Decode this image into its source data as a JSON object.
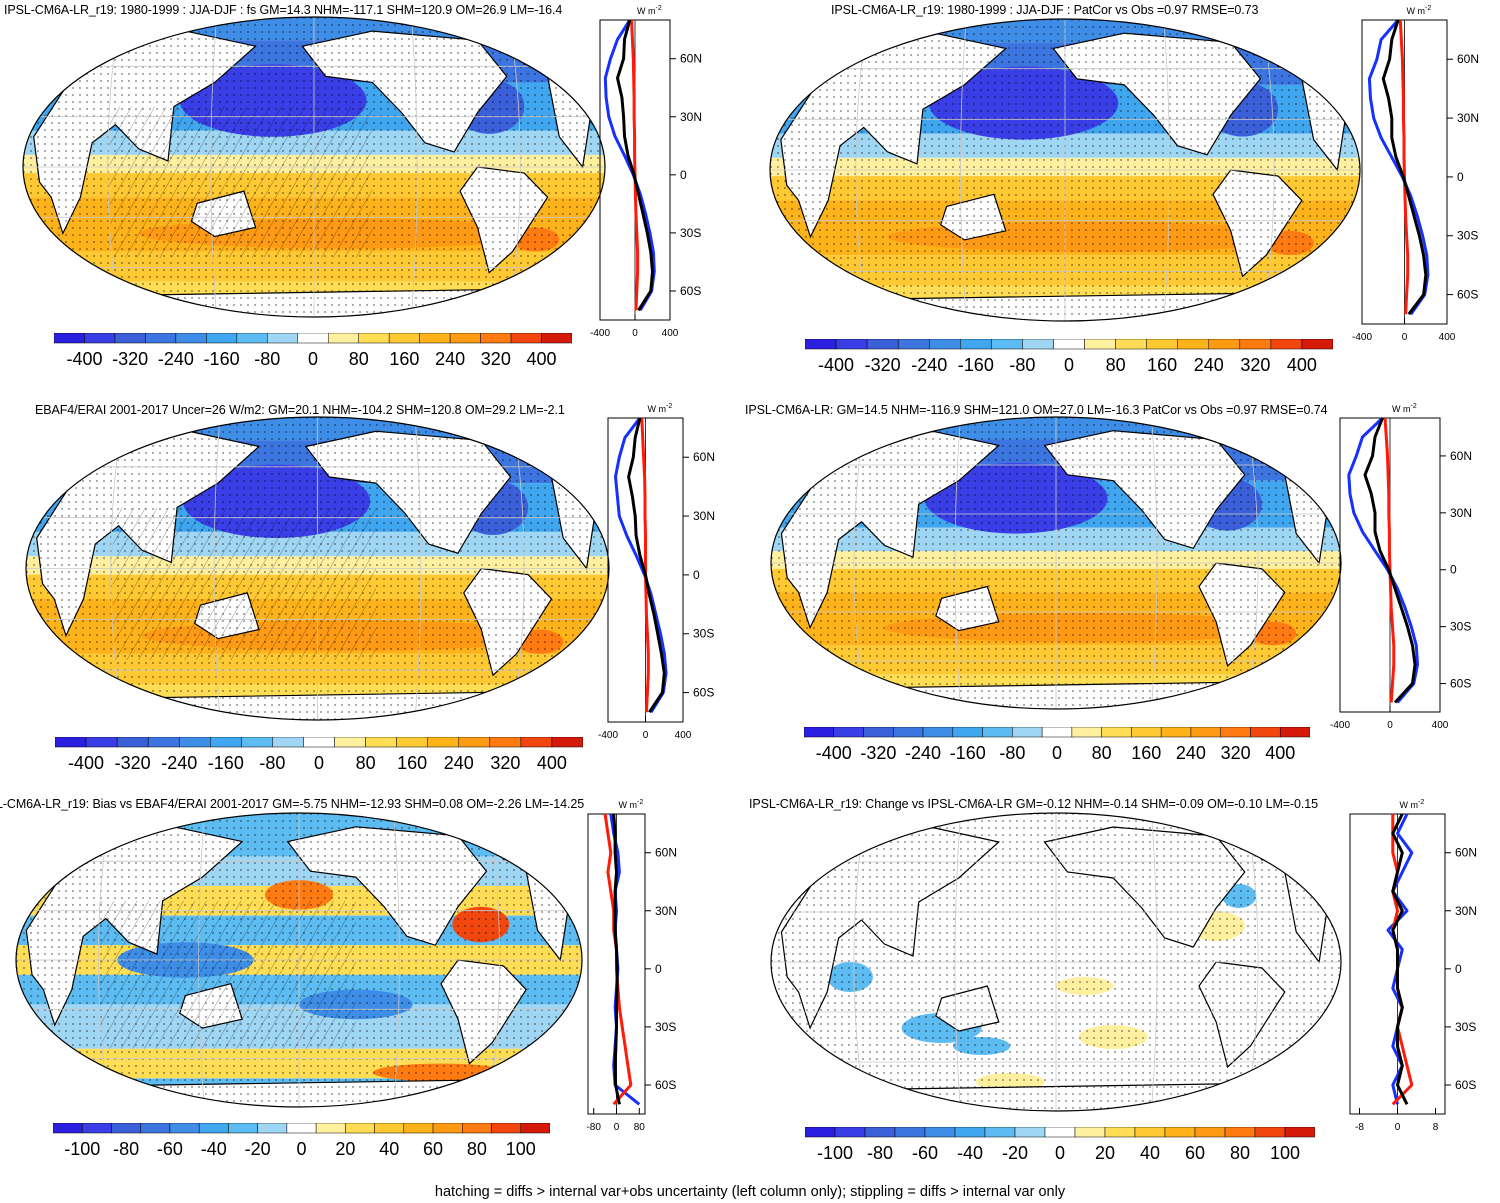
{
  "footer": "hatching = diffs > internal var+obs uncertainty (left column only); stippling = diffs > internal var only",
  "colors": {
    "scale": [
      "#2b1fe0",
      "#3a3ee6",
      "#3a5fd8",
      "#3c74e0",
      "#3e8ee8",
      "#3fa6ef",
      "#5dbcf2",
      "#9fd6f3",
      "#ffffff",
      "#fff0a0",
      "#ffdd55",
      "#ffc933",
      "#ffb31a",
      "#ff9a14",
      "#ff7a10",
      "#f2460f",
      "#d61a0a"
    ],
    "land": "#ffffff",
    "blue_line": "#1530ff",
    "red_line": "#ff1a0a",
    "black_line": "#000000"
  },
  "panels": [
    {
      "id": "p1",
      "title": "IPSL-CM6A-LR_r19: 1980-1999 : JJA-DJF : fs GM=14.3 NHM=-117.1 SHM=120.9 OM=26.9 LM=-16.4",
      "cbar_labels": [
        "-400",
        "-320",
        "-240",
        "-160",
        "-80",
        "0",
        "80",
        "160",
        "240",
        "320",
        "400"
      ],
      "zonal_unit": "W m",
      "zonal_exp": "-2",
      "lat_labels": [
        "60N",
        "30N",
        "0",
        "30S",
        "60S"
      ],
      "x_ticks": [
        "-400",
        "0",
        "400"
      ]
    },
    {
      "id": "p2",
      "title": "IPSL-CM6A-LR_r19: 1980-1999 : JJA-DJF : PatCor vs Obs =0.97 RMSE=0.73",
      "cbar_labels": [
        "-400",
        "-320",
        "-240",
        "-160",
        "-80",
        "0",
        "80",
        "160",
        "240",
        "320",
        "400"
      ],
      "zonal_unit": "W m",
      "zonal_exp": "-2",
      "lat_labels": [
        "60N",
        "30N",
        "0",
        "30S",
        "60S"
      ],
      "x_ticks": [
        "-400",
        "0",
        "400"
      ]
    },
    {
      "id": "p3",
      "title": "EBAF4/ERAI 2001-2017 Uncer=26 W/m2: GM=20.1 NHM=-104.2 SHM=120.8 OM=29.2 LM=-2.1",
      "cbar_labels": [
        "-400",
        "-320",
        "-240",
        "-160",
        "-80",
        "0",
        "80",
        "160",
        "240",
        "320",
        "400"
      ],
      "zonal_unit": "W m",
      "zonal_exp": "-2",
      "lat_labels": [
        "60N",
        "30N",
        "0",
        "30S",
        "60S"
      ],
      "x_ticks": [
        "-400",
        "0",
        "400"
      ]
    },
    {
      "id": "p4",
      "title": "IPSL-CM6A-LR: GM=14.5 NHM=-116.9 SHM=121.0 OM=27.0 LM=-16.3 PatCor vs Obs =0.97 RMSE=0.74",
      "cbar_labels": [
        "-400",
        "-320",
        "-240",
        "-160",
        "-80",
        "0",
        "80",
        "160",
        "240",
        "320",
        "400"
      ],
      "zonal_unit": "W m",
      "zonal_exp": "-2",
      "lat_labels": [
        "60N",
        "30N",
        "0",
        "30S",
        "60S"
      ],
      "x_ticks": [
        "-400",
        "0",
        "400"
      ]
    },
    {
      "id": "p5",
      "title": "L-CM6A-LR_r19: Bias vs EBAF4/ERAI 2001-2017 GM=-5.75 NHM=-12.93 SHM=0.08 OM=-2.26 LM=-14.25",
      "cbar_labels": [
        "-100",
        "-80",
        "-60",
        "-40",
        "-20",
        "0",
        "20",
        "40",
        "60",
        "80",
        "100"
      ],
      "zonal_unit": "W m",
      "zonal_exp": "-2",
      "lat_labels": [
        "60N",
        "30N",
        "0",
        "30S",
        "60S"
      ],
      "x_ticks": [
        "-80",
        "0",
        "80"
      ]
    },
    {
      "id": "p6",
      "title": "IPSL-CM6A-LR_r19: Change vs IPSL-CM6A-LR GM=-0.12 NHM=-0.14 SHM=-0.09 OM=-0.10 LM=-0.15",
      "cbar_labels": [
        "-100",
        "-80",
        "-60",
        "-40",
        "-20",
        "0",
        "20",
        "40",
        "60",
        "80",
        "100"
      ],
      "zonal_unit": "W m",
      "zonal_exp": "-2",
      "lat_labels": [
        "60N",
        "30N",
        "0",
        "30S",
        "60S"
      ],
      "x_ticks": [
        "-8",
        "0",
        "8"
      ]
    }
  ],
  "chart_data": [
    {
      "type": "heatmap",
      "title": "IPSL-CM6A-LR_r19: 1980-1999 : JJA-DJF : fs GM=14.3 NHM=-117.1 SHM=120.9 OM=26.9 LM=-16.4",
      "colorbar_ticks": [
        -400,
        -320,
        -240,
        -160,
        -80,
        0,
        80,
        160,
        240,
        320,
        400
      ],
      "zonal_profile": {
        "xlim": [
          -400,
          400
        ],
        "lat": [
          80,
          70,
          60,
          50,
          40,
          30,
          20,
          10,
          0,
          -10,
          -20,
          -30,
          -40,
          -50,
          -60,
          -70
        ],
        "series": [
          {
            "color": "blue",
            "values": [
              -60,
              -200,
              -280,
              -340,
              -330,
              -300,
              -230,
              -120,
              -20,
              60,
              120,
              170,
              210,
              220,
              190,
              60
            ]
          },
          {
            "color": "red",
            "values": [
              -40,
              -30,
              -20,
              -15,
              -10,
              -10,
              -5,
              -5,
              0,
              5,
              10,
              20,
              30,
              30,
              20,
              10
            ]
          },
          {
            "color": "black",
            "values": [
              -60,
              -120,
              -130,
              -200,
              -150,
              -130,
              -120,
              -80,
              -10,
              40,
              90,
              140,
              180,
              200,
              180,
              40
            ]
          }
        ]
      }
    },
    {
      "type": "heatmap",
      "title": "IPSL-CM6A-LR_r19: 1980-1999 : JJA-DJF : PatCor vs Obs =0.97 RMSE=0.73",
      "colorbar_ticks": [
        -400,
        -320,
        -240,
        -160,
        -80,
        0,
        80,
        160,
        240,
        320,
        400
      ],
      "zonal_profile": {
        "xlim": [
          -400,
          400
        ],
        "lat": [
          80,
          70,
          60,
          50,
          40,
          30,
          20,
          10,
          0,
          -10,
          -20,
          -30,
          -40,
          -50,
          -60,
          -70
        ],
        "series": [
          {
            "color": "blue",
            "values": [
              -60,
              -220,
              -260,
              -330,
              -320,
              -290,
              -220,
              -120,
              -20,
              60,
              120,
              170,
              210,
              220,
              190,
              60
            ]
          },
          {
            "color": "red",
            "values": [
              -40,
              -30,
              -20,
              -15,
              -10,
              -10,
              -5,
              -5,
              0,
              5,
              10,
              20,
              30,
              30,
              20,
              10
            ]
          },
          {
            "color": "black",
            "values": [
              -60,
              -120,
              -140,
              -200,
              -150,
              -120,
              -120,
              -80,
              -10,
              40,
              90,
              140,
              180,
              200,
              180,
              40
            ]
          }
        ]
      }
    },
    {
      "type": "heatmap",
      "title": "EBAF4/ERAI 2001-2017 Uncer=26 W/m2: GM=20.1 NHM=-104.2 SHM=120.8 OM=29.2 LM=-2.1",
      "colorbar_ticks": [
        -400,
        -320,
        -240,
        -160,
        -80,
        0,
        80,
        160,
        240,
        320,
        400
      ],
      "zonal_profile": {
        "xlim": [
          -400,
          400
        ],
        "lat": [
          80,
          70,
          60,
          50,
          40,
          30,
          20,
          10,
          0,
          -10,
          -20,
          -30,
          -40,
          -50,
          -60,
          -70
        ],
        "series": [
          {
            "color": "blue",
            "values": [
              -60,
              -220,
              -280,
              -320,
              -300,
              -280,
              -200,
              -100,
              -10,
              60,
              110,
              160,
              200,
              220,
              190,
              60
            ]
          },
          {
            "color": "red",
            "values": [
              -40,
              -30,
              -20,
              -10,
              -5,
              -5,
              0,
              0,
              0,
              5,
              10,
              20,
              30,
              30,
              20,
              10
            ]
          },
          {
            "color": "black",
            "values": [
              -60,
              -110,
              -130,
              -180,
              -140,
              -110,
              -100,
              -60,
              0,
              40,
              90,
              130,
              170,
              200,
              180,
              40
            ]
          }
        ]
      }
    },
    {
      "type": "heatmap",
      "title": "IPSL-CM6A-LR: GM=14.5 NHM=-116.9 SHM=121.0 OM=27.0 LM=-16.3 PatCor vs Obs =0.97 RMSE=0.74",
      "colorbar_ticks": [
        -400,
        -320,
        -240,
        -160,
        -80,
        0,
        80,
        160,
        240,
        320,
        400
      ],
      "zonal_profile": {
        "xlim": [
          -400,
          400
        ],
        "lat": [
          80,
          70,
          60,
          50,
          40,
          30,
          20,
          10,
          0,
          -10,
          -20,
          -30,
          -40,
          -50,
          -60,
          -70
        ],
        "series": [
          {
            "color": "blue",
            "values": [
              -60,
              -220,
              -270,
              -330,
              -320,
              -290,
              -220,
              -120,
              -20,
              60,
              120,
              170,
              210,
              220,
              190,
              60
            ]
          },
          {
            "color": "red",
            "values": [
              -40,
              -30,
              -20,
              -15,
              -10,
              -10,
              -5,
              -5,
              0,
              5,
              10,
              20,
              30,
              30,
              20,
              10
            ]
          },
          {
            "color": "black",
            "values": [
              -60,
              -120,
              -140,
              -200,
              -150,
              -120,
              -120,
              -80,
              -10,
              40,
              90,
              140,
              180,
              200,
              180,
              40
            ]
          }
        ]
      }
    },
    {
      "type": "heatmap",
      "title": "L-CM6A-LR_r19: Bias vs EBAF4/ERAI 2001-2017 GM=-5.75 NHM=-12.93 SHM=0.08 OM=-2.26 LM=-14.25",
      "colorbar_ticks": [
        -100,
        -80,
        -60,
        -40,
        -20,
        0,
        20,
        40,
        60,
        80,
        100
      ],
      "zonal_profile": {
        "xlim": [
          -100,
          100
        ],
        "lat": [
          80,
          70,
          60,
          50,
          40,
          30,
          20,
          10,
          0,
          -10,
          -20,
          -30,
          -40,
          -50,
          -60,
          -70
        ],
        "series": [
          {
            "color": "blue",
            "values": [
              -20,
              -10,
              5,
              10,
              -5,
              0,
              -5,
              0,
              5,
              0,
              -5,
              0,
              -5,
              -10,
              -5,
              80
            ]
          },
          {
            "color": "red",
            "values": [
              -40,
              -30,
              -20,
              -30,
              -20,
              -10,
              -10,
              0,
              0,
              5,
              10,
              20,
              30,
              40,
              50,
              -10
            ]
          },
          {
            "color": "black",
            "values": [
              -10,
              -5,
              -5,
              0,
              -5,
              -5,
              -5,
              0,
              2,
              2,
              0,
              0,
              -2,
              -5,
              -3,
              10
            ]
          }
        ]
      }
    },
    {
      "type": "heatmap",
      "title": "IPSL-CM6A-LR_r19: Change vs IPSL-CM6A-LR GM=-0.12 NHM=-0.14 SHM=-0.09 OM=-0.10 LM=-0.15",
      "colorbar_ticks": [
        -100,
        -80,
        -60,
        -40,
        -20,
        0,
        20,
        40,
        60,
        80,
        100
      ],
      "zonal_profile": {
        "xlim": [
          -10,
          10
        ],
        "lat": [
          80,
          70,
          60,
          50,
          40,
          30,
          20,
          10,
          0,
          -10,
          -20,
          -30,
          -40,
          -50,
          -60,
          -70
        ],
        "series": [
          {
            "color": "blue",
            "values": [
              2,
              0,
              3,
              1,
              -1,
              2,
              -2,
              1,
              0,
              -1,
              1,
              0,
              -1,
              1,
              -1,
              0
            ]
          },
          {
            "color": "red",
            "values": [
              -1,
              -1,
              -1,
              0,
              -1,
              0,
              -1,
              0,
              0,
              0,
              1,
              0,
              1,
              2,
              3,
              -1
            ]
          },
          {
            "color": "black",
            "values": [
              1,
              -1,
              1,
              0,
              -1,
              1,
              -1,
              0,
              0,
              0,
              1,
              0,
              0,
              1,
              0,
              2
            ]
          }
        ]
      }
    }
  ]
}
